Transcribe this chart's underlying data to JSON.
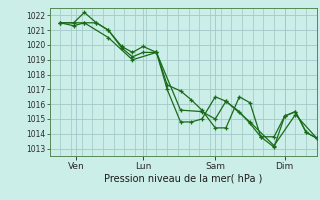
{
  "background_color": "#cceee8",
  "grid_color": "#a0c8c8",
  "line_color": "#1a6b1a",
  "ylabel_ticks": [
    1013,
    1014,
    1015,
    1016,
    1017,
    1018,
    1019,
    1020,
    1021,
    1022
  ],
  "ylim": [
    1012.5,
    1022.5
  ],
  "xlabel": "Pression niveau de la mer( hPa )",
  "xtick_labels": [
    "Ven",
    "Lun",
    "Sam",
    "Dim"
  ],
  "xtick_positions": [
    0.1,
    0.35,
    0.62,
    0.88
  ],
  "xlim": [
    0.0,
    1.0
  ],
  "series": [
    [
      0.04,
      1021.5,
      0.09,
      1021.3,
      0.13,
      1021.5,
      0.175,
      1021.5,
      0.22,
      1021.0,
      0.27,
      1019.8,
      0.31,
      1019.2,
      0.35,
      1019.5,
      0.4,
      1019.5,
      0.44,
      1017.3,
      0.49,
      1016.9,
      0.53,
      1016.3,
      0.57,
      1015.6,
      0.62,
      1014.4,
      0.66,
      1014.4,
      0.71,
      1016.5,
      0.75,
      1016.1,
      0.79,
      1013.8,
      0.84,
      1013.8,
      0.88,
      1015.2,
      0.92,
      1015.5,
      0.96,
      1014.1,
      1.0,
      1013.7
    ],
    [
      0.04,
      1021.5,
      0.09,
      1021.5,
      0.13,
      1022.2,
      0.175,
      1021.5,
      0.22,
      1021.0,
      0.27,
      1019.9,
      0.31,
      1019.5,
      0.35,
      1019.9,
      0.4,
      1019.5,
      0.44,
      1017.0,
      0.49,
      1014.8,
      0.53,
      1014.8,
      0.57,
      1015.0,
      0.62,
      1016.5,
      0.66,
      1016.2,
      0.71,
      1015.5,
      0.75,
      1014.7,
      0.79,
      1013.8,
      0.84,
      1013.1,
      0.88,
      1015.2,
      0.92,
      1015.5,
      0.96,
      1014.1,
      1.0,
      1013.7
    ],
    [
      0.04,
      1021.5,
      0.13,
      1021.5,
      0.22,
      1020.5,
      0.31,
      1019.0,
      0.4,
      1019.5,
      0.49,
      1015.6,
      0.57,
      1015.5,
      0.62,
      1015.0,
      0.66,
      1016.2,
      0.75,
      1014.8,
      0.84,
      1013.2,
      0.92,
      1015.3,
      1.0,
      1013.7
    ]
  ]
}
